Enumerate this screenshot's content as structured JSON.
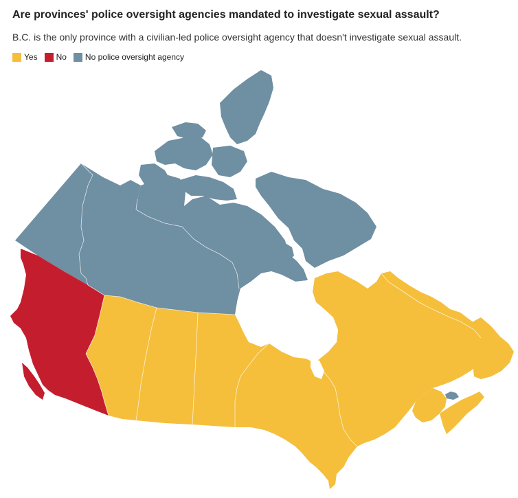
{
  "title": "Are provinces' police oversight agencies mandated to investigate sexual assault?",
  "subtitle": "B.C. is the only province with a civilian-led police oversight agency that doesn't investigate sexual assault.",
  "legend": [
    {
      "label": "Yes",
      "color": "#f5bf3c"
    },
    {
      "label": "No",
      "color": "#c41e2e"
    },
    {
      "label": "No police oversight agency",
      "color": "#6f8fa3"
    }
  ],
  "colors": {
    "yes": "#f5bf3c",
    "no": "#c41e2e",
    "none": "#6f8fa3",
    "water": "#ffffff"
  },
  "regions": [
    {
      "name": "British Columbia",
      "category": "no"
    },
    {
      "name": "Alberta",
      "category": "yes"
    },
    {
      "name": "Saskatchewan",
      "category": "yes"
    },
    {
      "name": "Manitoba",
      "category": "yes"
    },
    {
      "name": "Ontario",
      "category": "yes"
    },
    {
      "name": "Quebec",
      "category": "yes"
    },
    {
      "name": "New Brunswick",
      "category": "yes"
    },
    {
      "name": "Nova Scotia",
      "category": "yes"
    },
    {
      "name": "Prince Edward Island",
      "category": "none"
    },
    {
      "name": "Newfoundland and Labrador",
      "category": "yes"
    },
    {
      "name": "Yukon",
      "category": "none"
    },
    {
      "name": "Northwest Territories",
      "category": "none"
    },
    {
      "name": "Nunavut",
      "category": "none"
    }
  ]
}
